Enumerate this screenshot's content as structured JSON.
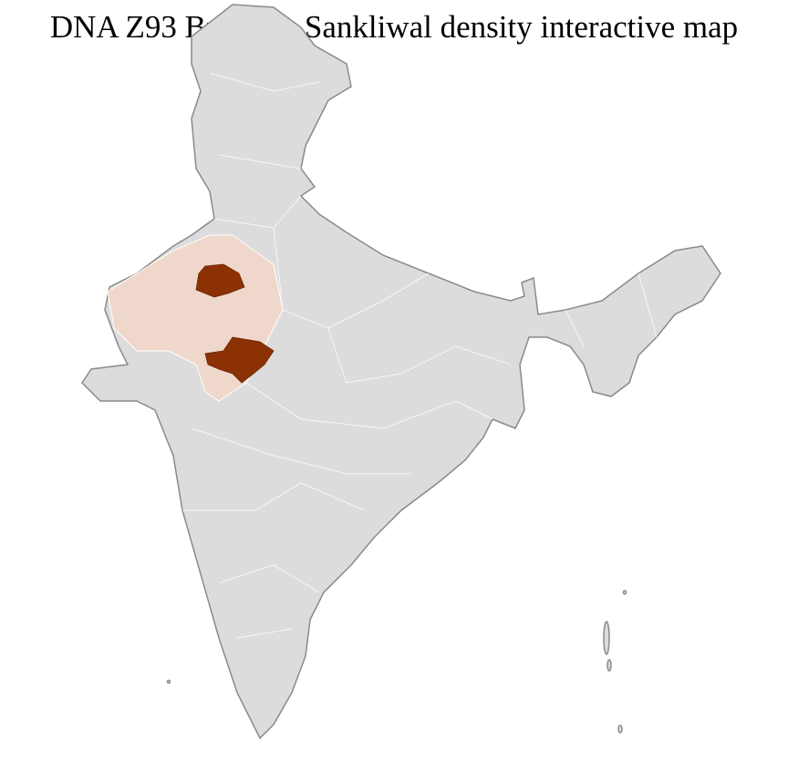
{
  "title": "DNA Z93 Brahmin Sankliwal density interactive map",
  "colors": {
    "base_region": "#dcdcdc",
    "border": "#8a8a8a",
    "low_density_state": "#efd8cb",
    "high_density_district": "#8b3103"
  },
  "regions": {
    "highlighted_state": "Rajasthan",
    "high_density_districts_count": 2
  }
}
